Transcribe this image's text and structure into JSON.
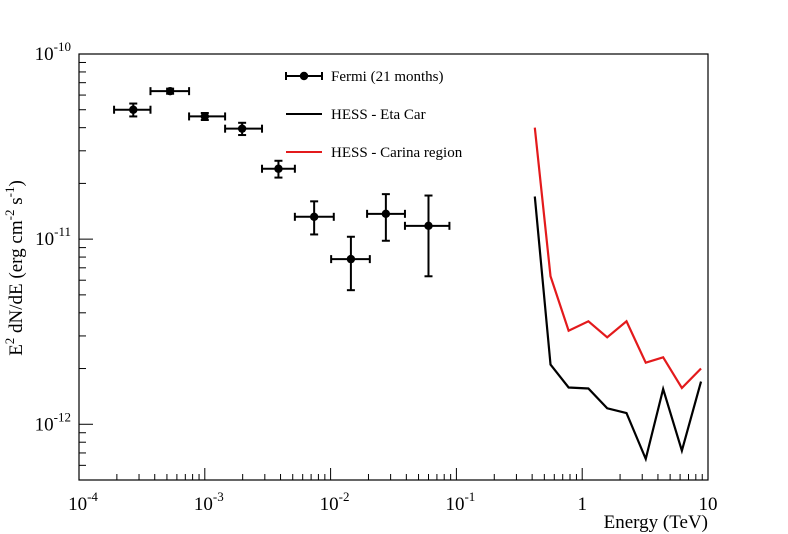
{
  "chart_data": {
    "type": "line",
    "xscale": "log",
    "yscale": "log",
    "xlim": [
      0.0001,
      10
    ],
    "ylim": [
      5e-13,
      1e-10
    ],
    "xlabel": "Energy (TeV)",
    "ylabel": {
      "parts": [
        "E",
        "2",
        " dN/dE (erg cm",
        "-2",
        " s",
        "-1",
        ")"
      ]
    },
    "x_ticks": [
      {
        "value": 0.0001,
        "base": "10",
        "exp": "-4"
      },
      {
        "value": 0.001,
        "base": "10",
        "exp": "-3"
      },
      {
        "value": 0.01,
        "base": "10",
        "exp": "-2"
      },
      {
        "value": 0.1,
        "base": "10",
        "exp": "-1"
      },
      {
        "value": 1,
        "base": "1",
        "exp": ""
      },
      {
        "value": 10,
        "base": "10",
        "exp": ""
      }
    ],
    "y_ticks": [
      {
        "value": 1e-12,
        "base": "10",
        "exp": "-12"
      },
      {
        "value": 1e-11,
        "base": "10",
        "exp": "-11"
      },
      {
        "value": 1e-10,
        "base": "10",
        "exp": "-10"
      }
    ],
    "series": [
      {
        "name": "Fermi (21 months)",
        "kind": "points",
        "color": "#000000",
        "points": [
          {
            "x": 0.00027,
            "y": 5e-11,
            "xlo": 0.00019,
            "xhi": 0.00037,
            "ylo": 4.6e-11,
            "yhi": 5.4e-11
          },
          {
            "x": 0.00053,
            "y": 6.3e-11,
            "xlo": 0.00037,
            "xhi": 0.00075,
            "ylo": 6.1e-11,
            "yhi": 6.5e-11
          },
          {
            "x": 0.001,
            "y": 4.6e-11,
            "xlo": 0.00075,
            "xhi": 0.00145,
            "ylo": 4.4e-11,
            "yhi": 4.8e-11
          },
          {
            "x": 0.00198,
            "y": 3.95e-11,
            "xlo": 0.00145,
            "xhi": 0.00285,
            "ylo": 3.65e-11,
            "yhi": 4.25e-11
          },
          {
            "x": 0.00385,
            "y": 2.4e-11,
            "xlo": 0.00285,
            "xhi": 0.0052,
            "ylo": 2.15e-11,
            "yhi": 2.65e-11
          },
          {
            "x": 0.0074,
            "y": 1.32e-11,
            "xlo": 0.0052,
            "xhi": 0.0106,
            "ylo": 1.06e-11,
            "yhi": 1.6e-11
          },
          {
            "x": 0.0145,
            "y": 7.8e-12,
            "xlo": 0.0101,
            "xhi": 0.0205,
            "ylo": 5.3e-12,
            "yhi": 1.03e-11
          },
          {
            "x": 0.0275,
            "y": 1.37e-11,
            "xlo": 0.0195,
            "xhi": 0.039,
            "ylo": 9.8e-12,
            "yhi": 1.75e-11
          },
          {
            "x": 0.06,
            "y": 1.18e-11,
            "xlo": 0.039,
            "xhi": 0.088,
            "ylo": 6.3e-12,
            "yhi": 1.72e-11
          }
        ]
      },
      {
        "name": "HESS - Eta Car",
        "kind": "line",
        "color": "#000000",
        "points": [
          {
            "x": 0.42,
            "y": 1.7e-11
          },
          {
            "x": 0.56,
            "y": 2.1e-12
          },
          {
            "x": 0.78,
            "y": 1.58e-12
          },
          {
            "x": 1.12,
            "y": 1.56e-12
          },
          {
            "x": 1.58,
            "y": 1.22e-12
          },
          {
            "x": 2.25,
            "y": 1.15e-12
          },
          {
            "x": 3.2,
            "y": 6.5e-13
          },
          {
            "x": 4.4,
            "y": 1.55e-12
          },
          {
            "x": 6.2,
            "y": 7.2e-13
          },
          {
            "x": 8.8,
            "y": 1.7e-12
          }
        ]
      },
      {
        "name": "HESS - Carina region",
        "kind": "line",
        "color": "#e31a1c",
        "points": [
          {
            "x": 0.42,
            "y": 4e-11
          },
          {
            "x": 0.56,
            "y": 6.3e-12
          },
          {
            "x": 0.78,
            "y": 3.2e-12
          },
          {
            "x": 1.12,
            "y": 3.6e-12
          },
          {
            "x": 1.58,
            "y": 2.95e-12
          },
          {
            "x": 2.25,
            "y": 3.6e-12
          },
          {
            "x": 3.2,
            "y": 2.15e-12
          },
          {
            "x": 4.4,
            "y": 2.3e-12
          },
          {
            "x": 6.2,
            "y": 1.57e-12
          },
          {
            "x": 8.8,
            "y": 2e-12
          }
        ]
      }
    ],
    "legend": {
      "position": "top-center",
      "entries": [
        {
          "label": "Fermi (21 months)",
          "style": "marker-line",
          "color": "#000000"
        },
        {
          "label": "HESS - Eta Car",
          "style": "line",
          "color": "#000000"
        },
        {
          "label": "HESS - Carina region",
          "style": "line",
          "color": "#e31a1c"
        }
      ]
    }
  }
}
